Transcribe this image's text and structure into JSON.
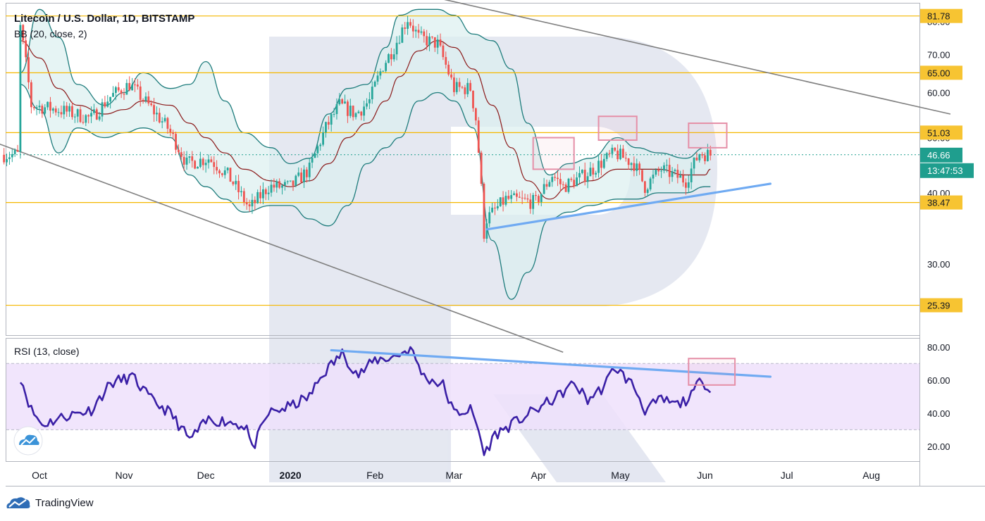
{
  "header": {
    "symbol_line": "Litecoin / U.S. Dollar, 1D, BITSTAMP",
    "bb_label": "BB (20, close, 2)",
    "rsi_label": "RSI (13, close)"
  },
  "colors": {
    "level_line": "#f5b800",
    "level_tag_bg": "#f7c432",
    "candle_up": "#26a69a",
    "candle_down": "#ef5350",
    "bb_band": "#1e7c7c",
    "bb_fill": "#dcefef",
    "bb_basis": "#8b1a1a",
    "trendline": "#7f7f7f",
    "support_line": "#6faaf2",
    "rsi_line": "#3a1fa6",
    "rsi_fill": "#efe0fb",
    "highlight_box": "#e58fa7",
    "current_tag_bg": "#1f9e8e"
  },
  "chart_data": [
    {
      "type": "candlestick",
      "title": "Litecoin / U.S. Dollar, 1D, BITSTAMP",
      "indicator": "BB (20, close, 2)",
      "y_axis": {
        "ticks": [
          30,
          40,
          50,
          60,
          70,
          80
        ],
        "tick_labels": [
          "30.00",
          "40.00",
          "50.00",
          "60.00",
          "70.00",
          "80.00"
        ],
        "ylim": [
          22.5,
          86
        ]
      },
      "x_axis": {
        "labels": [
          "Oct",
          "Nov",
          "Dec",
          "2020",
          "Feb",
          "Mar",
          "Apr",
          "May",
          "Jun",
          "Jul",
          "Aug"
        ]
      },
      "horizontal_levels": [
        {
          "value": 81.78,
          "label": "81.78"
        },
        {
          "value": 65.0,
          "label": "65.00"
        },
        {
          "value": 51.03,
          "label": "51.03"
        },
        {
          "value": 38.47,
          "label": "38.47"
        },
        {
          "value": 25.39,
          "label": "25.39"
        }
      ],
      "current_price": {
        "value": 46.66,
        "label": "46.66",
        "countdown": "13:47:53"
      },
      "close_anchors": [
        [
          "2019-09-24",
          78
        ],
        [
          "2019-09-28",
          57
        ],
        [
          "2019-10-08",
          56
        ],
        [
          "2019-10-20",
          54
        ],
        [
          "2019-10-27",
          59
        ],
        [
          "2019-11-03",
          62
        ],
        [
          "2019-11-10",
          57
        ],
        [
          "2019-11-17",
          52
        ],
        [
          "2019-11-24",
          45
        ],
        [
          "2019-12-02",
          46
        ],
        [
          "2019-12-09",
          43
        ],
        [
          "2019-12-17",
          37.5
        ],
        [
          "2019-12-24",
          41
        ],
        [
          "2020-01-01",
          41
        ],
        [
          "2020-01-08",
          44
        ],
        [
          "2020-01-14",
          52
        ],
        [
          "2020-01-19",
          57
        ],
        [
          "2020-01-25",
          55
        ],
        [
          "2020-01-30",
          58
        ],
        [
          "2020-02-04",
          67
        ],
        [
          "2020-02-08",
          72
        ],
        [
          "2020-02-13",
          81
        ],
        [
          "2020-02-17",
          75
        ],
        [
          "2020-02-24",
          73
        ],
        [
          "2020-03-01",
          61
        ],
        [
          "2020-03-07",
          61
        ],
        [
          "2020-03-09",
          54
        ],
        [
          "2020-03-12",
          34
        ],
        [
          "2020-03-13",
          36
        ],
        [
          "2020-03-20",
          39
        ],
        [
          "2020-03-31",
          38.5
        ],
        [
          "2020-04-06",
          43
        ],
        [
          "2020-04-10",
          41
        ],
        [
          "2020-04-18",
          43
        ],
        [
          "2020-04-29",
          47
        ],
        [
          "2020-05-06",
          45
        ],
        [
          "2020-05-10",
          41
        ],
        [
          "2020-05-16",
          44
        ],
        [
          "2020-05-25",
          42
        ],
        [
          "2020-05-30",
          47
        ],
        [
          "2020-06-03",
          46.66
        ]
      ],
      "bollinger_bands": [
        {
          "date": "2019-09-24",
          "upper": 65,
          "basis": 74,
          "lower": 62
        },
        {
          "date": "2019-10-01",
          "upper": 84,
          "basis": 69,
          "lower": 56
        },
        {
          "date": "2019-10-08",
          "upper": 75,
          "basis": 61,
          "lower": 47
        },
        {
          "date": "2019-10-15",
          "upper": 62,
          "basis": 57,
          "lower": 52
        },
        {
          "date": "2019-10-25",
          "upper": 57,
          "basis": 55,
          "lower": 50
        },
        {
          "date": "2019-11-01",
          "upper": 60,
          "basis": 56,
          "lower": 51
        },
        {
          "date": "2019-11-08",
          "upper": 65,
          "basis": 58,
          "lower": 52
        },
        {
          "date": "2019-11-18",
          "upper": 61,
          "basis": 57,
          "lower": 50
        },
        {
          "date": "2019-11-25",
          "upper": 62,
          "basis": 53,
          "lower": 43
        },
        {
          "date": "2019-12-01",
          "upper": 68,
          "basis": 50,
          "lower": 41
        },
        {
          "date": "2019-12-08",
          "upper": 58,
          "basis": 47,
          "lower": 39
        },
        {
          "date": "2019-12-15",
          "upper": 51,
          "basis": 44,
          "lower": 37
        },
        {
          "date": "2019-12-25",
          "upper": 48,
          "basis": 42,
          "lower": 38
        },
        {
          "date": "2020-01-01",
          "upper": 45,
          "basis": 41,
          "lower": 38
        },
        {
          "date": "2020-01-08",
          "upper": 46,
          "basis": 42,
          "lower": 36
        },
        {
          "date": "2020-01-15",
          "upper": 55,
          "basis": 45,
          "lower": 35
        },
        {
          "date": "2020-01-22",
          "upper": 61,
          "basis": 50,
          "lower": 38
        },
        {
          "date": "2020-01-29",
          "upper": 62,
          "basis": 53,
          "lower": 45
        },
        {
          "date": "2020-02-05",
          "upper": 72,
          "basis": 58,
          "lower": 48
        },
        {
          "date": "2020-02-10",
          "upper": 82,
          "basis": 64,
          "lower": 50
        },
        {
          "date": "2020-02-17",
          "upper": 84,
          "basis": 71,
          "lower": 58
        },
        {
          "date": "2020-02-24",
          "upper": 84,
          "basis": 74,
          "lower": 60
        },
        {
          "date": "2020-03-01",
          "upper": 82,
          "basis": 72,
          "lower": 58
        },
        {
          "date": "2020-03-08",
          "upper": 76,
          "basis": 66,
          "lower": 52
        },
        {
          "date": "2020-03-15",
          "upper": 74,
          "basis": 57,
          "lower": 33
        },
        {
          "date": "2020-03-22",
          "upper": 66,
          "basis": 48,
          "lower": 26
        },
        {
          "date": "2020-03-28",
          "upper": 53,
          "basis": 42,
          "lower": 29
        },
        {
          "date": "2020-04-05",
          "upper": 43,
          "basis": 39,
          "lower": 36
        },
        {
          "date": "2020-04-12",
          "upper": 45,
          "basis": 41,
          "lower": 37
        },
        {
          "date": "2020-04-20",
          "upper": 46,
          "basis": 42,
          "lower": 38
        },
        {
          "date": "2020-04-30",
          "upper": 50,
          "basis": 44,
          "lower": 39
        },
        {
          "date": "2020-05-07",
          "upper": 48,
          "basis": 44,
          "lower": 39
        },
        {
          "date": "2020-05-15",
          "upper": 47,
          "basis": 44,
          "lower": 40
        },
        {
          "date": "2020-05-25",
          "upper": 46,
          "basis": 43,
          "lower": 40
        },
        {
          "date": "2020-06-01",
          "upper": 48,
          "basis": 43,
          "lower": 41
        },
        {
          "date": "2020-06-03",
          "upper": 48,
          "basis": 44,
          "lower": 41
        }
      ],
      "descending_channel": {
        "upper": [
          [
            "2019-12-15",
            105
          ],
          [
            "2020-08-30",
            55
          ]
        ],
        "lower": [
          [
            "2019-09-15",
            49
          ],
          [
            "2020-04-10",
            21
          ]
        ]
      },
      "support_line": [
        [
          "2020-03-13",
          34.5
        ],
        [
          "2020-06-25",
          41.5
        ]
      ],
      "highlight_boxes": [
        {
          "from": "2020-03-30",
          "to": "2020-04-14",
          "low": 44,
          "high": 50
        },
        {
          "from": "2020-04-23",
          "to": "2020-05-07",
          "low": 49.5,
          "high": 54.5
        },
        {
          "from": "2020-05-26",
          "to": "2020-06-09",
          "low": 48,
          "high": 53
        }
      ]
    },
    {
      "type": "line",
      "title": "RSI (13, close)",
      "y_axis": {
        "ticks": [
          20,
          40,
          60,
          80
        ],
        "tick_labels": [
          "20.00",
          "40.00",
          "60.00",
          "80.00"
        ],
        "ylim": [
          11,
          85
        ]
      },
      "band": [
        30,
        70
      ],
      "anchors": [
        [
          "2019-09-24",
          62
        ],
        [
          "2019-09-28",
          42
        ],
        [
          "2019-10-02",
          33
        ],
        [
          "2019-10-10",
          38
        ],
        [
          "2019-10-20",
          42
        ],
        [
          "2019-10-27",
          58
        ],
        [
          "2019-11-04",
          62
        ],
        [
          "2019-11-11",
          48
        ],
        [
          "2019-11-18",
          40
        ],
        [
          "2019-11-25",
          24
        ],
        [
          "2019-12-02",
          36
        ],
        [
          "2019-12-09",
          35
        ],
        [
          "2019-12-16",
          32
        ],
        [
          "2019-12-18",
          18
        ],
        [
          "2019-12-24",
          40
        ],
        [
          "2020-01-01",
          44
        ],
        [
          "2020-01-08",
          50
        ],
        [
          "2020-01-13",
          64
        ],
        [
          "2020-01-20",
          76
        ],
        [
          "2020-01-26",
          63
        ],
        [
          "2020-02-01",
          72
        ],
        [
          "2020-02-08",
          74
        ],
        [
          "2020-02-14",
          79
        ],
        [
          "2020-02-19",
          62
        ],
        [
          "2020-02-26",
          57
        ],
        [
          "2020-03-01",
          40
        ],
        [
          "2020-03-07",
          42
        ],
        [
          "2020-03-10",
          30
        ],
        [
          "2020-03-12",
          15
        ],
        [
          "2020-03-16",
          27
        ],
        [
          "2020-03-23",
          34
        ],
        [
          "2020-03-31",
          42
        ],
        [
          "2020-04-08",
          50
        ],
        [
          "2020-04-14",
          58
        ],
        [
          "2020-04-19",
          48
        ],
        [
          "2020-04-25",
          56
        ],
        [
          "2020-04-29",
          68
        ],
        [
          "2020-05-06",
          56
        ],
        [
          "2020-05-10",
          42
        ],
        [
          "2020-05-16",
          48
        ],
        [
          "2020-05-22",
          45
        ],
        [
          "2020-05-27",
          50
        ],
        [
          "2020-05-31",
          62
        ],
        [
          "2020-06-02",
          54
        ],
        [
          "2020-06-03",
          56
        ]
      ],
      "falling_line": [
        [
          "2020-01-16",
          78
        ],
        [
          "2020-06-25",
          62
        ]
      ],
      "highlight_box": {
        "from": "2020-05-26",
        "to": "2020-06-12",
        "low": 57,
        "high": 73
      }
    }
  ],
  "x_labels": [
    "Oct",
    "Nov",
    "Dec",
    "2020",
    "Feb",
    "Mar",
    "Apr",
    "May",
    "Jun",
    "Jul",
    "Aug"
  ],
  "footer": {
    "brand": "TradingView"
  }
}
